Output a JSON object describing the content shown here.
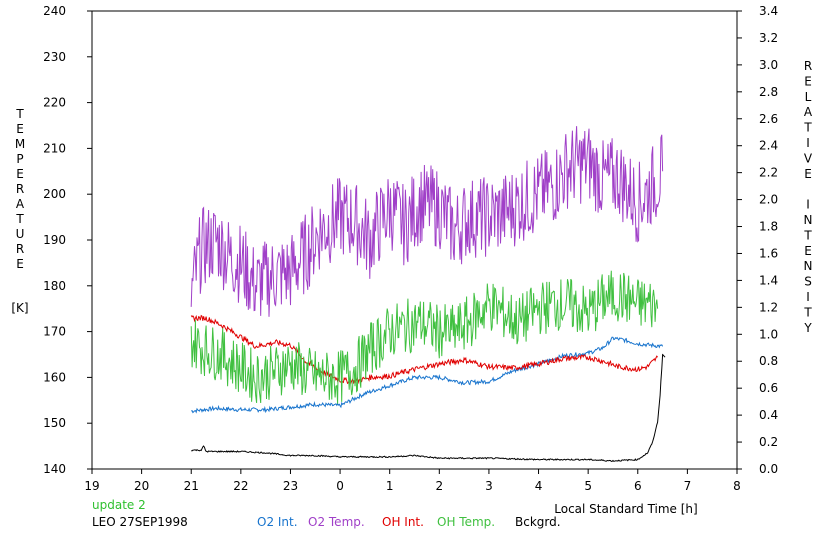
{
  "chart_data": {
    "type": "line",
    "title": "",
    "xlabel": "Local Standard Time [h]",
    "ylabel_left": [
      "T",
      "E",
      "M",
      "P",
      "E",
      "R",
      "A",
      "T",
      "U",
      "R",
      "E"
    ],
    "ylabel_left_unit": "[K]",
    "ylabel_right_words": [
      [
        "R",
        "E",
        "L",
        "A",
        "T",
        "I",
        "V",
        "E"
      ],
      [
        "I",
        "N",
        "T",
        "E",
        "N",
        "S",
        "I",
        "T",
        "Y"
      ]
    ],
    "xlim": [
      19,
      32
    ],
    "x_tick_values": [
      19,
      20,
      21,
      22,
      23,
      24,
      25,
      26,
      27,
      28,
      29,
      30,
      31,
      32
    ],
    "x_tick_labels": [
      "19",
      "20",
      "21",
      "22",
      "23",
      "0",
      "1",
      "2",
      "3",
      "4",
      "5",
      "6",
      "7",
      "8"
    ],
    "ylim_left": [
      140,
      240
    ],
    "y_left_ticks": [
      140,
      150,
      160,
      170,
      180,
      190,
      200,
      210,
      220,
      230,
      240
    ],
    "ylim_right": [
      0,
      3.4
    ],
    "y_right_ticks": [
      "0.0",
      "0.2",
      "0.4",
      "0.6",
      "0.8",
      "1.0",
      "1.2",
      "1.4",
      "1.6",
      "1.8",
      "2.0",
      "2.2",
      "2.4",
      "2.6",
      "2.8",
      "3.0",
      "3.2",
      "3.4"
    ],
    "grid": false,
    "update_label": "update 2",
    "station_label": "LEO 27SEP1998",
    "series": [
      {
        "name": "O2 Int.",
        "axis": "right",
        "color": "#1874cd",
        "x": [
          21.0,
          21.5,
          22.0,
          22.5,
          23.0,
          23.5,
          24.0,
          24.5,
          25.0,
          25.5,
          26.0,
          26.5,
          27.0,
          27.5,
          28.0,
          28.5,
          29.0,
          29.3,
          29.5,
          29.7,
          30.0,
          30.5
        ],
        "y": [
          0.43,
          0.45,
          0.44,
          0.44,
          0.46,
          0.48,
          0.47,
          0.56,
          0.62,
          0.68,
          0.68,
          0.64,
          0.65,
          0.73,
          0.78,
          0.84,
          0.86,
          0.9,
          0.97,
          0.96,
          0.93,
          0.91
        ]
      },
      {
        "name": "O2 Temp.",
        "axis": "left",
        "color": "#a040c8",
        "x": [
          21.0,
          21.2,
          21.5,
          21.8,
          22.0,
          22.3,
          22.6,
          23.0,
          23.3,
          23.6,
          24.0,
          24.3,
          24.6,
          25.0,
          25.3,
          25.6,
          26.0,
          26.3,
          26.6,
          27.0,
          27.3,
          27.6,
          28.0,
          28.3,
          28.6,
          29.0,
          29.3,
          29.6,
          30.0,
          30.3,
          30.5
        ],
        "y": [
          178,
          188,
          190,
          186,
          185,
          180,
          182,
          183,
          187,
          192,
          195,
          194,
          190,
          197,
          193,
          198,
          197,
          192,
          195,
          195,
          196,
          198,
          200,
          202,
          206,
          207,
          203,
          204,
          198,
          202,
          205
        ]
      },
      {
        "name": "OH Int.",
        "axis": "right",
        "color": "#e00000",
        "x": [
          21.0,
          21.3,
          21.6,
          22.0,
          22.3,
          22.7,
          23.0,
          23.3,
          23.6,
          24.0,
          24.3,
          24.6,
          25.0,
          25.5,
          26.0,
          26.5,
          27.0,
          27.5,
          28.0,
          28.5,
          29.0,
          29.3,
          29.6,
          30.0,
          30.2,
          30.4
        ],
        "y": [
          1.12,
          1.12,
          1.07,
          0.98,
          0.91,
          0.94,
          0.92,
          0.8,
          0.73,
          0.66,
          0.65,
          0.68,
          0.69,
          0.74,
          0.78,
          0.81,
          0.76,
          0.75,
          0.78,
          0.82,
          0.83,
          0.8,
          0.76,
          0.74,
          0.76,
          0.83
        ]
      },
      {
        "name": "OH Temp.",
        "axis": "left",
        "color": "#40c040",
        "x": [
          21.0,
          21.3,
          21.6,
          22.0,
          22.3,
          22.6,
          23.0,
          23.3,
          23.6,
          24.0,
          24.3,
          24.6,
          25.0,
          25.3,
          25.6,
          26.0,
          26.3,
          26.6,
          27.0,
          27.3,
          27.6,
          28.0,
          28.3,
          28.6,
          29.0,
          29.3,
          29.6,
          30.0,
          30.3,
          30.4
        ],
        "y": [
          168,
          166,
          165,
          162,
          160,
          161,
          163,
          161,
          160,
          160,
          162,
          166,
          170,
          171,
          172,
          170,
          170,
          172,
          176,
          174,
          172,
          175,
          176,
          176,
          174,
          177,
          178,
          176,
          176,
          175
        ]
      },
      {
        "name": "Bckgrd.",
        "axis": "right",
        "color": "#000000",
        "x": [
          21.0,
          21.2,
          21.25,
          21.3,
          21.5,
          22.0,
          22.5,
          23.0,
          23.5,
          24.0,
          25.0,
          25.5,
          26.0,
          27.0,
          28.0,
          29.0,
          29.5,
          30.0,
          30.2,
          30.3,
          30.4,
          30.45,
          30.5,
          30.55
        ],
        "y": [
          0.14,
          0.14,
          0.17,
          0.13,
          0.13,
          0.13,
          0.12,
          0.1,
          0.1,
          0.09,
          0.09,
          0.1,
          0.08,
          0.08,
          0.07,
          0.07,
          0.06,
          0.07,
          0.12,
          0.2,
          0.35,
          0.55,
          0.85,
          0.83
        ]
      }
    ]
  }
}
